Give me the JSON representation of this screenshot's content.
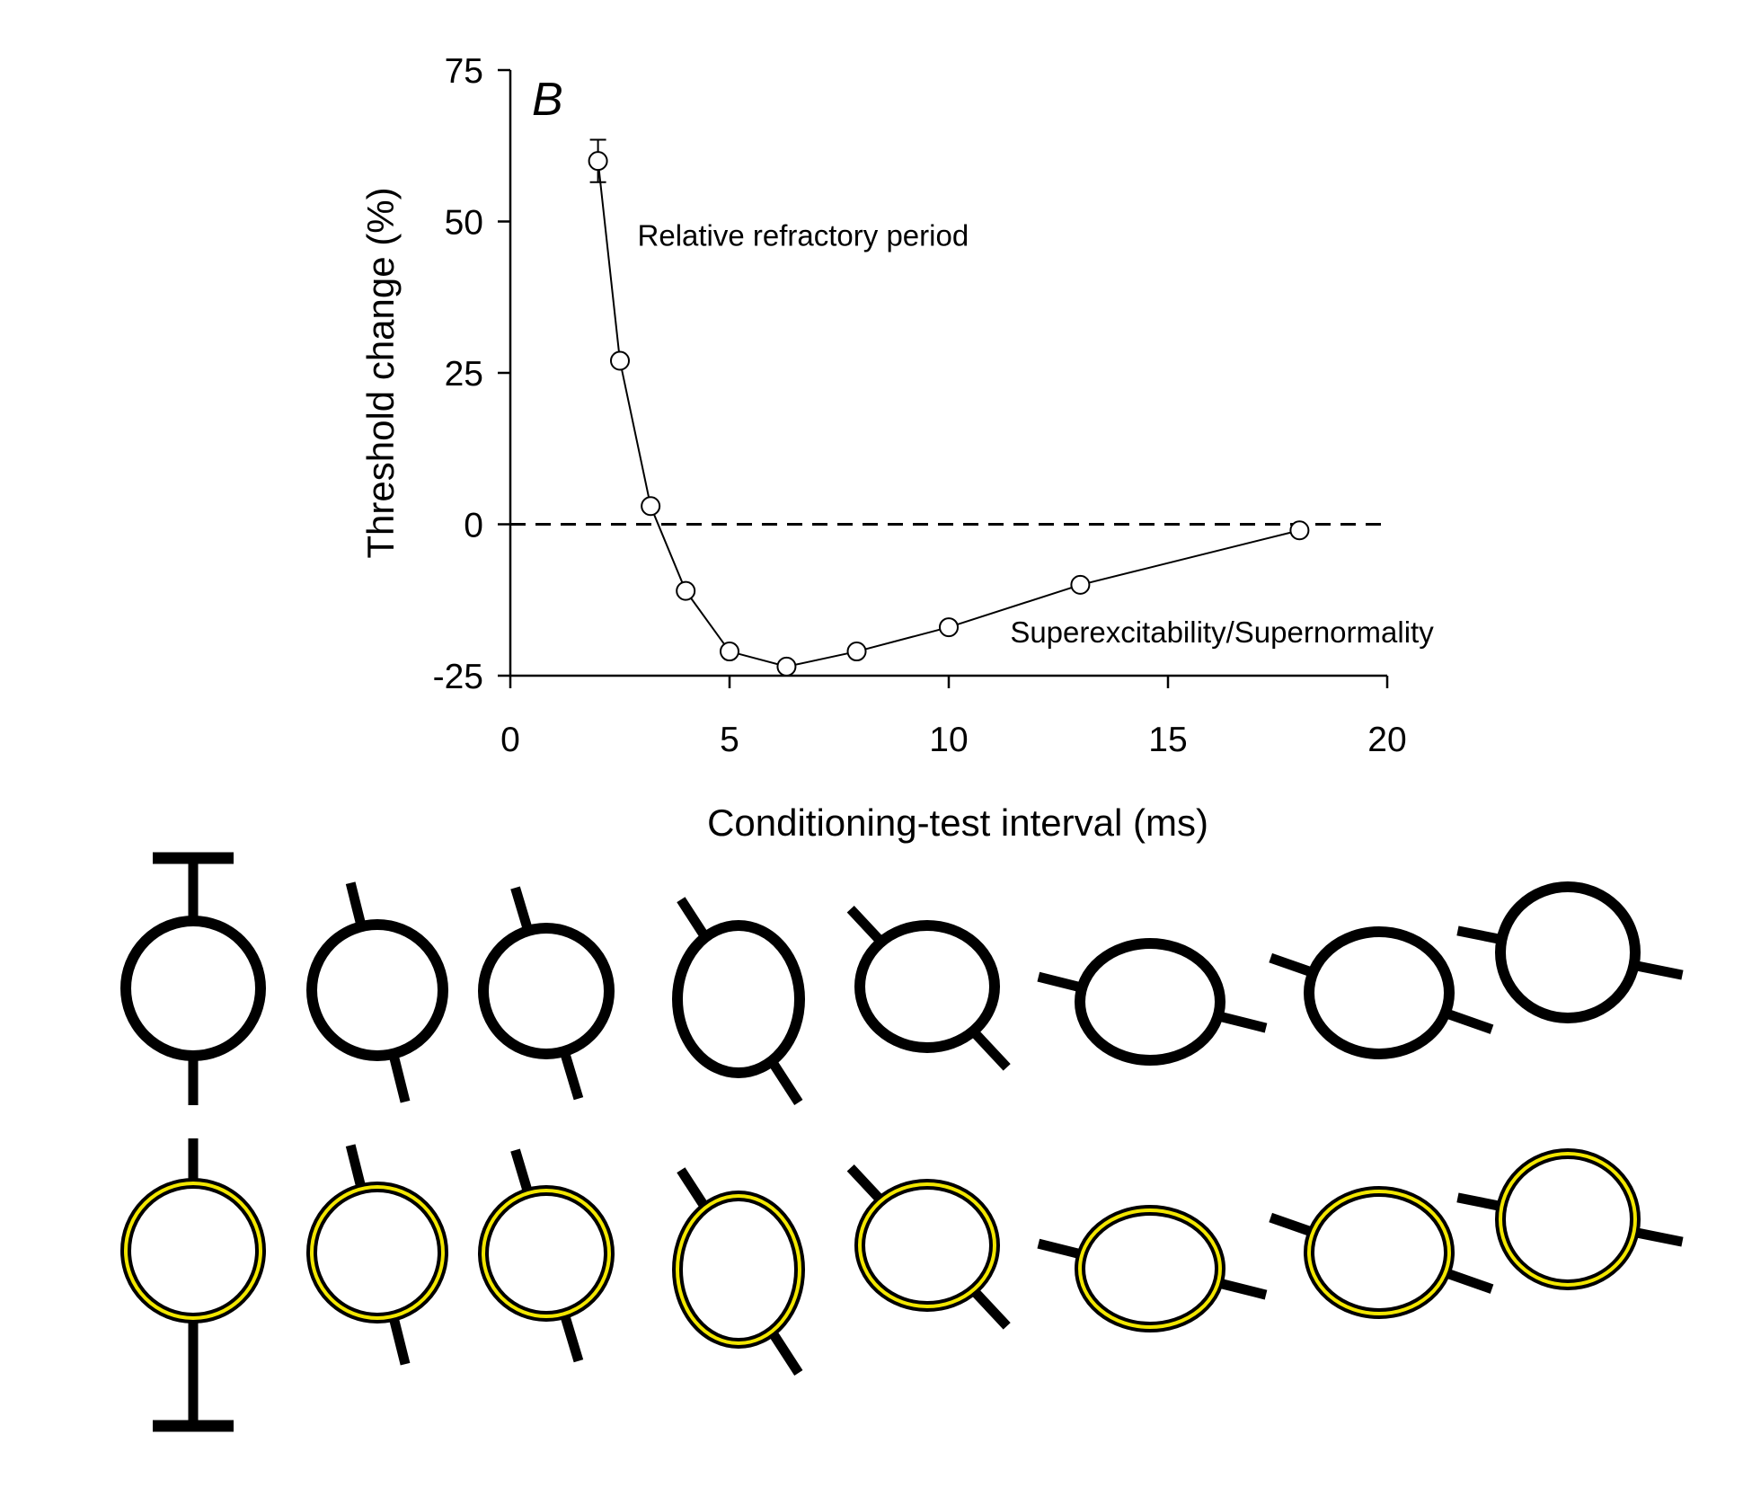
{
  "chart_data": {
    "type": "line",
    "panel_label": "B",
    "xlabel": "Conditioning-test interval (ms)",
    "ylabel": "Threshold change  (%)",
    "xlim": [
      0,
      20
    ],
    "ylim": [
      -25,
      75
    ],
    "xticks": [
      0,
      5,
      10,
      15,
      20
    ],
    "yticks": [
      75,
      50,
      25,
      0,
      -25
    ],
    "xtick_labels": [
      "0",
      "5",
      "10",
      "15",
      "20"
    ],
    "ytick_labels": [
      "75",
      "50",
      "25",
      "0",
      "-25"
    ],
    "reference_line": {
      "y": 0,
      "style": "dashed"
    },
    "series": [
      {
        "marker": "open-circle",
        "x": [
          2.0,
          2.5,
          3.2,
          4.0,
          5.0,
          6.3,
          7.9,
          10.0,
          13.0,
          18.0
        ],
        "y": [
          60.0,
          27.0,
          3.0,
          -11.0,
          -21.0,
          -23.5,
          -21.0,
          -17.0,
          -10.0,
          -1.0
        ],
        "error_y": [
          3.5,
          0,
          0,
          0,
          0,
          0,
          0,
          0,
          0,
          0
        ]
      }
    ],
    "annotations": [
      {
        "text": "Relative refractory period",
        "near_x": 2.9,
        "near_y": 46
      },
      {
        "text": "Superexcitability/Supernormality",
        "near_x": 11.4,
        "near_y": -19.5
      }
    ],
    "grid": false,
    "legend": "none"
  },
  "zoom_rows": [
    {
      "id": "detected",
      "ring_color": ""
    },
    {
      "id": "fitted",
      "ring_color": "#f2e600"
    }
  ]
}
